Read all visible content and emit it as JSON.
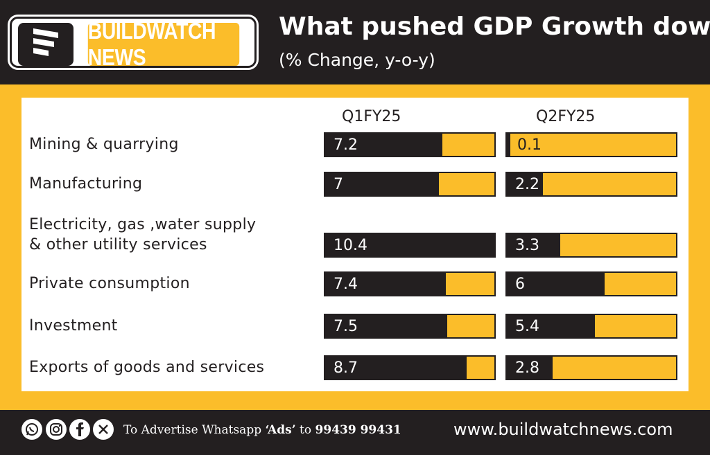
{
  "brand": {
    "name": "BUILDWATCH NEWS"
  },
  "header": {
    "title": "What pushed GDP Growth down?",
    "subtitle": "(% Change, y-o-y)"
  },
  "colors": {
    "accent": "#fbbd2a",
    "dark": "#231f20",
    "panel": "#ffffff"
  },
  "chart_data": {
    "type": "bar",
    "title": "What pushed GDP Growth down?",
    "subtitle": "(% Change, y-o-y)",
    "categories": [
      "Mining & quarrying",
      "Manufacturing",
      "Electricity, gas ,water supply & other utility services",
      "Private consumption",
      "Investment",
      "Exports of goods and services"
    ],
    "category_lines": [
      [
        "Mining & quarrying"
      ],
      [
        "Manufacturing"
      ],
      [
        "Electricity, gas ,water supply",
        "& other utility services"
      ],
      [
        "Private consumption"
      ],
      [
        "Investment"
      ],
      [
        "Exports of goods and services"
      ]
    ],
    "series": [
      {
        "name": "Q1FY25",
        "values": [
          7.2,
          7,
          10.4,
          7.4,
          7.5,
          8.7
        ],
        "labels": [
          "7.2",
          "7",
          "10.4",
          "7.4",
          "7.5",
          "8.7"
        ]
      },
      {
        "name": "Q2FY25",
        "values": [
          0.1,
          2.2,
          3.3,
          6,
          5.4,
          2.8
        ],
        "labels": [
          "0.1",
          "2.2",
          "3.3",
          "6",
          "5.4",
          "2.8"
        ]
      }
    ],
    "xlim": [
      0,
      10.4
    ],
    "legend": "column headers"
  },
  "footer": {
    "social_icons": [
      "whatsapp-icon",
      "instagram-icon",
      "facebook-icon",
      "x-icon"
    ],
    "advert_prefix": "To Advertise Whatsapp",
    "advert_keyword": "‘Ads’",
    "advert_to": "to",
    "advert_number": "99439 99431",
    "website": "www.buildwatchnews.com"
  }
}
